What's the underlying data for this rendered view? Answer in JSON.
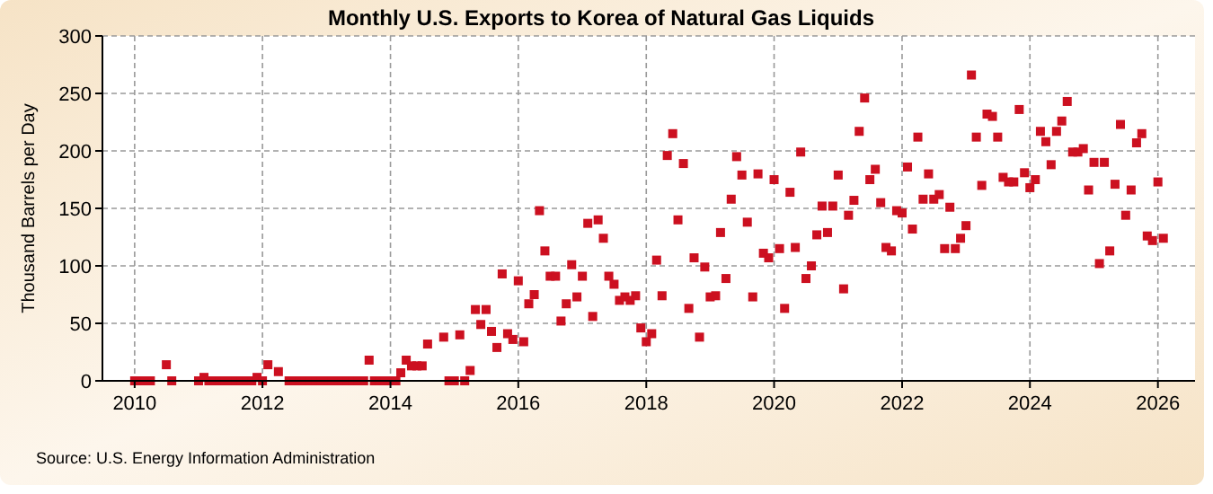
{
  "chart_data": {
    "type": "scatter",
    "title": "Monthly U.S. Exports to Korea of Natural Gas Liquids",
    "ylabel": "Thousand Barrels per Day",
    "annotations": [
      "Source: U.S. Energy Information Administration"
    ],
    "xlim": [
      "2009-07",
      "2026-08"
    ],
    "xticks": [
      "2010",
      "2012",
      "2014",
      "2016",
      "2018",
      "2020",
      "2022",
      "2024",
      "2026"
    ],
    "ylim": [
      0,
      300
    ],
    "yticks": [
      0,
      50,
      100,
      150,
      200,
      250,
      300
    ],
    "grid": true,
    "marker": "square",
    "series": [
      {
        "color": "#cc1020",
        "x": [
          "2010-01",
          "2010-02",
          "2010-03",
          "2010-04",
          "2010-07",
          "2010-08",
          "2011-01",
          "2011-02",
          "2011-03",
          "2011-04",
          "2011-05",
          "2011-06",
          "2011-07",
          "2011-08",
          "2011-09",
          "2011-10",
          "2011-11",
          "2011-12",
          "2012-01",
          "2012-02",
          "2012-04",
          "2012-06",
          "2012-07",
          "2012-08",
          "2012-09",
          "2012-10",
          "2012-11",
          "2012-12",
          "2013-01",
          "2013-02",
          "2013-03",
          "2013-04",
          "2013-05",
          "2013-06",
          "2013-07",
          "2013-08",
          "2013-09",
          "2013-10",
          "2013-11",
          "2013-12",
          "2014-01",
          "2014-02",
          "2014-03",
          "2014-04",
          "2014-05",
          "2014-06",
          "2014-07",
          "2014-08",
          "2014-11",
          "2014-12",
          "2015-01",
          "2015-02",
          "2015-03",
          "2015-04",
          "2015-05",
          "2015-06",
          "2015-07",
          "2015-08",
          "2015-09",
          "2015-10",
          "2015-11",
          "2015-12",
          "2016-01",
          "2016-02",
          "2016-03",
          "2016-04",
          "2016-05",
          "2016-06",
          "2016-07",
          "2016-08",
          "2016-09",
          "2016-10",
          "2016-11",
          "2016-12",
          "2017-01",
          "2017-02",
          "2017-03",
          "2017-04",
          "2017-05",
          "2017-06",
          "2017-07",
          "2017-08",
          "2017-09",
          "2017-10",
          "2017-11",
          "2017-12",
          "2018-01",
          "2018-02",
          "2018-03",
          "2018-04",
          "2018-05",
          "2018-06",
          "2018-07",
          "2018-08",
          "2018-09",
          "2018-10",
          "2018-11",
          "2018-12",
          "2019-01",
          "2019-02",
          "2019-03",
          "2019-04",
          "2019-05",
          "2019-06",
          "2019-07",
          "2019-08",
          "2019-09",
          "2019-10",
          "2019-11",
          "2019-12",
          "2020-01",
          "2020-02",
          "2020-03",
          "2020-04",
          "2020-05",
          "2020-06",
          "2020-07",
          "2020-08",
          "2020-09",
          "2020-10",
          "2020-11",
          "2020-12",
          "2021-01",
          "2021-02",
          "2021-03",
          "2021-04",
          "2021-05",
          "2021-06",
          "2021-07",
          "2021-08",
          "2021-09",
          "2021-10",
          "2021-11",
          "2021-12",
          "2022-01",
          "2022-02",
          "2022-03",
          "2022-04",
          "2022-05",
          "2022-06",
          "2022-07",
          "2022-08",
          "2022-09",
          "2022-10",
          "2022-11",
          "2022-12",
          "2023-01",
          "2023-02",
          "2023-03",
          "2023-04",
          "2023-05",
          "2023-06",
          "2023-07",
          "2023-08",
          "2023-09",
          "2023-10",
          "2023-11",
          "2023-12",
          "2024-01",
          "2024-02",
          "2024-03",
          "2024-04",
          "2024-05",
          "2024-06",
          "2024-07",
          "2024-08",
          "2024-09",
          "2024-10",
          "2024-11",
          "2024-12",
          "2025-01",
          "2025-02",
          "2025-03",
          "2025-04",
          "2025-05",
          "2025-06",
          "2025-07",
          "2025-08",
          "2025-09",
          "2025-10",
          "2025-11",
          "2025-12",
          "2026-01",
          "2026-02"
        ],
        "values": [
          0,
          0,
          0,
          0,
          14,
          0,
          0,
          3,
          0,
          0,
          0,
          0,
          0,
          0,
          0,
          0,
          0,
          3,
          0,
          14,
          8,
          0,
          0,
          0,
          0,
          0,
          0,
          0,
          0,
          0,
          0,
          0,
          0,
          0,
          0,
          0,
          18,
          0,
          0,
          0,
          0,
          0,
          7,
          18,
          13,
          13,
          13,
          32,
          38,
          0,
          0,
          40,
          0,
          9,
          62,
          49,
          62,
          43,
          29,
          93,
          41,
          36,
          87,
          34,
          67,
          75,
          148,
          113,
          91,
          91,
          52,
          67,
          101,
          73,
          91,
          137,
          56,
          140,
          124,
          91,
          84,
          70,
          73,
          70,
          74,
          46,
          34,
          41,
          105,
          74,
          196,
          215,
          140,
          189,
          63,
          107,
          38,
          99,
          73,
          74,
          129,
          89,
          158,
          195,
          179,
          138,
          73,
          180,
          111,
          107,
          175,
          115,
          63,
          164,
          116,
          199,
          89,
          100,
          127,
          152,
          129,
          152,
          179,
          80,
          144,
          157,
          217,
          246,
          175,
          184,
          155,
          116,
          113,
          148,
          146,
          186,
          132,
          212,
          158,
          180,
          158,
          162,
          115,
          151,
          115,
          124,
          135,
          266,
          212,
          170,
          232,
          230,
          212,
          177,
          173,
          173,
          236,
          181,
          168,
          175,
          217,
          208,
          188,
          217,
          226,
          243,
          199,
          199,
          202,
          166,
          190,
          102,
          190,
          113,
          171,
          223,
          144,
          166,
          207,
          215,
          126,
          122,
          173,
          124
        ]
      }
    ]
  }
}
